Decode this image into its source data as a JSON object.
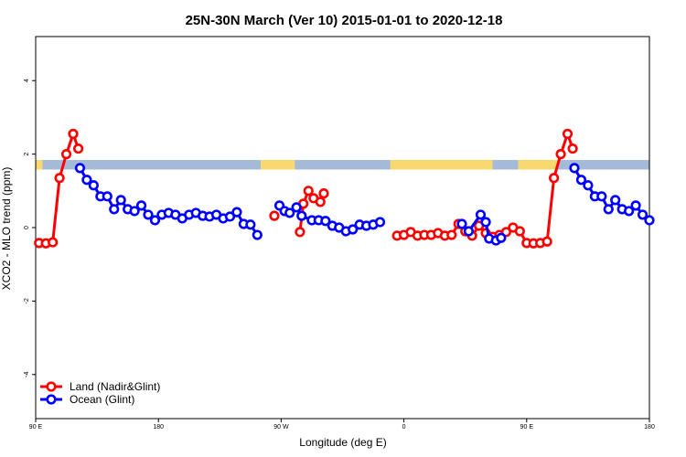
{
  "chart_data": {
    "type": "line",
    "title": "25N-30N March (Ver 10)   2015-01-01 to 2020-12-18",
    "xlabel": "Longitude (deg E)",
    "ylabel": "XCO2 - MLO trend (ppm)",
    "xlim": [
      90,
      450
    ],
    "ylim": [
      -5.2,
      5.2
    ],
    "x_ticks": [
      {
        "value": 90,
        "label": "90 E"
      },
      {
        "value": 162,
        "label": "180"
      },
      {
        "value": 234,
        "label": "90 W"
      },
      {
        "value": 306,
        "label": "0"
      },
      {
        "value": 378,
        "label": "90 E"
      },
      {
        "value": 450,
        "label": "180"
      }
    ],
    "y_ticks": [
      {
        "value": -4,
        "label": "-4"
      },
      {
        "value": -2,
        "label": "-2"
      },
      {
        "value": 0,
        "label": "0"
      },
      {
        "value": 2,
        "label": "2"
      },
      {
        "value": 4,
        "label": "4"
      }
    ],
    "land_ocean_band": {
      "y_range": [
        1.58,
        1.84
      ],
      "ocean_color": "#a3bbd9",
      "land_color": "#f9d96e",
      "land_segments": [
        [
          90,
          94
        ],
        [
          222,
          242
        ],
        [
          298,
          358
        ],
        [
          373,
          396
        ]
      ]
    },
    "series": [
      {
        "name": "Land (Nadir&Glint)",
        "color": "#ff0000",
        "segments": [
          [
            [
              92,
              -0.42
            ],
            [
              96,
              -0.43
            ],
            [
              100,
              -0.4
            ],
            [
              104,
              1.35
            ],
            [
              108,
              2.0
            ],
            [
              112,
              2.55
            ],
            [
              115,
              2.15
            ]
          ],
          [
            [
              230,
              0.32
            ]
          ],
          [
            [
              245,
              -0.12
            ],
            [
              247,
              0.65
            ],
            [
              250,
              1.0
            ],
            [
              253,
              0.8
            ],
            [
              257,
              0.7
            ],
            [
              259,
              0.93
            ]
          ],
          [
            [
              302,
              -0.22
            ],
            [
              306,
              -0.2
            ],
            [
              310,
              -0.12
            ],
            [
              314,
              -0.22
            ],
            [
              318,
              -0.2
            ],
            [
              322,
              -0.2
            ],
            [
              326,
              -0.15
            ],
            [
              330,
              -0.22
            ],
            [
              334,
              -0.2
            ],
            [
              338,
              0.1
            ],
            [
              342,
              -0.1
            ],
            [
              346,
              -0.22
            ],
            [
              350,
              0.05
            ],
            [
              354,
              -0.15
            ],
            [
              358,
              -0.25
            ],
            [
              362,
              -0.2
            ],
            [
              366,
              -0.12
            ],
            [
              370,
              0.0
            ],
            [
              374,
              -0.1
            ],
            [
              378,
              -0.42
            ],
            [
              382,
              -0.43
            ],
            [
              386,
              -0.42
            ],
            [
              390,
              -0.38
            ],
            [
              394,
              1.35
            ],
            [
              398,
              2.0
            ],
            [
              402,
              2.55
            ],
            [
              405,
              2.15
            ]
          ]
        ]
      },
      {
        "name": "Ocean (Glint)",
        "color": "#0000ff",
        "segments": [
          [
            [
              116,
              1.62
            ],
            [
              120,
              1.3
            ],
            [
              124,
              1.15
            ],
            [
              128,
              0.85
            ],
            [
              132,
              0.85
            ],
            [
              136,
              0.5
            ],
            [
              140,
              0.75
            ],
            [
              144,
              0.5
            ],
            [
              148,
              0.45
            ],
            [
              152,
              0.6
            ],
            [
              156,
              0.35
            ],
            [
              160,
              0.2
            ],
            [
              164,
              0.35
            ],
            [
              168,
              0.4
            ],
            [
              172,
              0.35
            ],
            [
              176,
              0.25
            ],
            [
              180,
              0.35
            ],
            [
              184,
              0.4
            ],
            [
              188,
              0.32
            ],
            [
              192,
              0.3
            ],
            [
              196,
              0.35
            ],
            [
              200,
              0.25
            ],
            [
              204,
              0.3
            ],
            [
              208,
              0.42
            ],
            [
              212,
              0.1
            ],
            [
              216,
              0.08
            ],
            [
              220,
              -0.2
            ]
          ],
          [
            [
              233,
              0.6
            ],
            [
              236,
              0.45
            ],
            [
              239,
              0.4
            ],
            [
              243,
              0.55
            ],
            [
              246,
              0.32
            ],
            [
              252,
              0.2
            ],
            [
              256,
              0.2
            ],
            [
              260,
              0.18
            ],
            [
              264,
              0.05
            ],
            [
              268,
              0.0
            ],
            [
              272,
              -0.1
            ],
            [
              276,
              -0.05
            ],
            [
              280,
              0.08
            ],
            [
              284,
              0.05
            ],
            [
              288,
              0.08
            ],
            [
              292,
              0.15
            ]
          ],
          [
            [
              340,
              0.1
            ],
            [
              344,
              -0.1
            ],
            [
              351,
              0.35
            ],
            [
              354,
              0.15
            ],
            [
              356,
              -0.3
            ],
            [
              360,
              -0.35
            ],
            [
              363,
              -0.28
            ]
          ],
          [
            [
              406,
              1.62
            ],
            [
              410,
              1.3
            ],
            [
              414,
              1.15
            ],
            [
              418,
              0.85
            ],
            [
              422,
              0.85
            ],
            [
              426,
              0.5
            ],
            [
              430,
              0.75
            ],
            [
              434,
              0.5
            ],
            [
              438,
              0.45
            ],
            [
              442,
              0.6
            ],
            [
              446,
              0.35
            ],
            [
              450,
              0.2
            ]
          ]
        ]
      }
    ],
    "legend": {
      "position": "bottom-left"
    },
    "grid": false
  }
}
